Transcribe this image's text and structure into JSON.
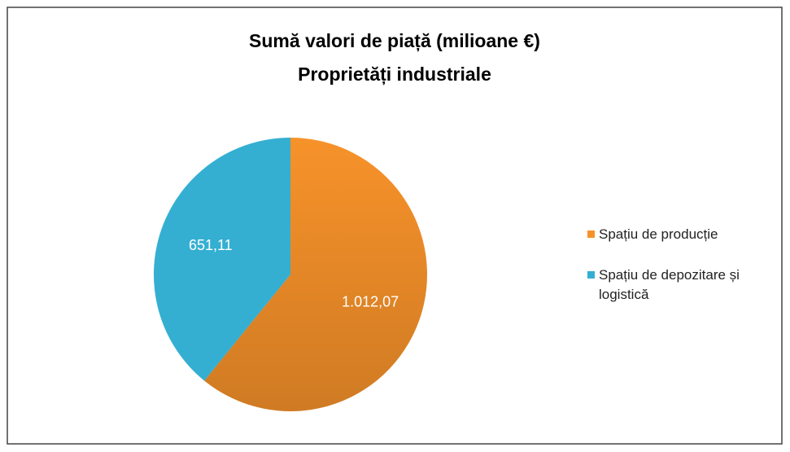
{
  "chart_data": {
    "type": "pie",
    "title": "Sumă valori de piață (milioane €)",
    "subtitle": "Proprietăți industriale",
    "categories": [
      "Spațiu de producție",
      "Spațiu de depozitare și logistică"
    ],
    "values": [
      1012.07,
      651.11
    ],
    "value_labels": [
      "1.012,07",
      "651,11"
    ],
    "colors": [
      "#f7922a",
      "#34afd2"
    ],
    "legend": "right"
  }
}
